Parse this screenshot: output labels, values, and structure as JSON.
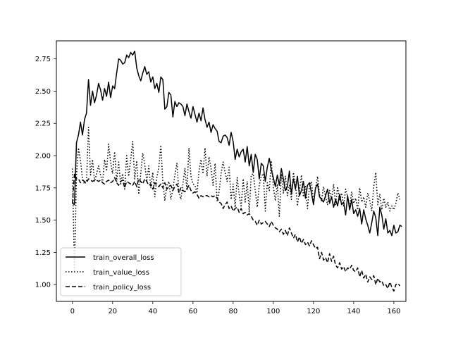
{
  "chart_data": {
    "type": "line",
    "title": "",
    "xlabel": "",
    "ylabel": "",
    "xlim": [
      -8,
      166
    ],
    "ylim": [
      0.87,
      2.89
    ],
    "xticks": [
      0,
      20,
      40,
      60,
      80,
      100,
      120,
      140,
      160
    ],
    "yticks": [
      1.0,
      1.25,
      1.5,
      1.75,
      2.0,
      2.25,
      2.5,
      2.75
    ],
    "grid": false,
    "legend_position": "lower-left",
    "series": [
      {
        "name": "train_overall_loss",
        "style": "solid",
        "color": "#000000",
        "values": [
          1.63,
          1.62,
          2.1,
          2.16,
          2.26,
          2.16,
          2.28,
          2.33,
          2.59,
          2.39,
          2.5,
          2.41,
          2.47,
          2.56,
          2.51,
          2.43,
          2.52,
          2.46,
          2.57,
          2.45,
          2.54,
          2.52,
          2.64,
          2.75,
          2.74,
          2.71,
          2.72,
          2.78,
          2.76,
          2.8,
          2.78,
          2.81,
          2.68,
          2.62,
          2.58,
          2.64,
          2.69,
          2.63,
          2.65,
          2.57,
          2.61,
          2.52,
          2.56,
          2.49,
          2.61,
          2.59,
          2.36,
          2.38,
          2.49,
          2.47,
          2.3,
          2.42,
          2.38,
          2.41,
          2.4,
          2.38,
          2.31,
          2.4,
          2.34,
          2.29,
          2.38,
          2.32,
          2.26,
          2.33,
          2.27,
          2.37,
          2.28,
          2.22,
          2.26,
          2.18,
          2.24,
          2.21,
          2.19,
          2.11,
          2.1,
          2.15,
          2.16,
          2.14,
          2.08,
          2.18,
          2.11,
          1.97,
          2.05,
          1.99,
          2.03,
          2.05,
          1.95,
          2.07,
          1.92,
          2.01,
          1.87,
          2.01,
          1.97,
          1.82,
          1.94,
          1.92,
          1.8,
          1.91,
          1.98,
          1.89,
          1.83,
          1.76,
          1.85,
          1.77,
          1.9,
          1.82,
          1.73,
          1.76,
          1.88,
          1.7,
          1.82,
          1.74,
          1.84,
          1.69,
          1.73,
          1.8,
          1.67,
          1.77,
          1.79,
          1.71,
          1.62,
          1.75,
          1.78,
          1.68,
          1.66,
          1.64,
          1.69,
          1.74,
          1.63,
          1.68,
          1.6,
          1.66,
          1.61,
          1.7,
          1.62,
          1.64,
          1.54,
          1.69,
          1.58,
          1.66,
          1.55,
          1.58,
          1.53,
          1.59,
          1.47,
          1.58,
          1.51,
          1.46,
          1.4,
          1.48,
          1.57,
          1.52,
          1.38,
          1.6,
          1.54,
          1.43,
          1.51,
          1.4,
          1.42,
          1.38,
          1.46,
          1.4,
          1.41,
          1.46,
          1.45
        ]
      },
      {
        "name": "train_value_loss",
        "style": "dotted",
        "color": "#000000",
        "values": [
          1.9,
          1.1,
          1.85,
          2.06,
          1.96,
          1.82,
          1.78,
          1.8,
          2.22,
          1.85,
          1.97,
          1.8,
          1.86,
          1.92,
          1.85,
          1.79,
          1.97,
          1.88,
          2.09,
          1.95,
          1.86,
          2.03,
          1.8,
          1.95,
          1.78,
          1.86,
          1.74,
          2.0,
          1.84,
          1.97,
          2.11,
          1.82,
          1.96,
          1.7,
          1.86,
          2.02,
          1.93,
          1.8,
          1.92,
          1.75,
          1.87,
          1.68,
          1.83,
          1.91,
          2.08,
          1.8,
          1.65,
          1.77,
          1.8,
          1.66,
          1.74,
          1.85,
          1.94,
          1.72,
          1.66,
          1.78,
          1.9,
          1.73,
          2.06,
          1.84,
          1.78,
          1.77,
          1.71,
          1.88,
          1.97,
          1.86,
          2.06,
          1.84,
          1.99,
          1.9,
          1.77,
          1.94,
          1.65,
          1.72,
          1.86,
          1.95,
          1.87,
          1.8,
          1.91,
          1.66,
          1.78,
          1.6,
          1.83,
          1.7,
          1.6,
          1.82,
          1.64,
          1.8,
          1.56,
          1.85,
          1.86,
          1.73,
          1.6,
          1.77,
          1.84,
          1.86,
          1.57,
          1.79,
          1.73,
          1.96,
          1.76,
          1.65,
          1.78,
          1.53,
          1.86,
          1.71,
          1.84,
          1.69,
          1.77,
          1.66,
          1.87,
          1.78,
          1.61,
          1.73,
          1.85,
          1.68,
          1.77,
          1.59,
          1.76,
          1.8,
          1.64,
          1.74,
          1.84,
          1.7,
          1.65,
          1.76,
          1.68,
          1.62,
          1.73,
          1.66,
          1.78,
          1.62,
          1.76,
          1.65,
          1.71,
          1.61,
          1.74,
          1.68,
          1.6,
          1.72,
          1.63,
          1.67,
          1.58,
          1.75,
          1.64,
          1.68,
          1.6,
          1.71,
          1.65,
          1.57,
          1.76,
          1.87,
          1.62,
          1.7,
          1.58,
          1.67,
          1.6,
          1.64,
          1.57,
          1.61,
          1.58,
          1.63,
          1.71,
          1.66
        ]
      },
      {
        "name": "train_policy_loss",
        "style": "dashed",
        "color": "#000000",
        "values": [
          1.63,
          1.86,
          1.82,
          1.82,
          1.79,
          1.81,
          1.8,
          1.79,
          1.82,
          1.81,
          1.8,
          1.81,
          1.81,
          1.8,
          1.81,
          1.79,
          1.78,
          1.8,
          1.81,
          1.79,
          1.8,
          1.83,
          1.79,
          1.77,
          1.8,
          1.81,
          1.75,
          1.8,
          1.79,
          1.78,
          1.77,
          1.8,
          1.76,
          1.82,
          1.8,
          1.78,
          1.82,
          1.8,
          1.77,
          1.78,
          1.74,
          1.79,
          1.77,
          1.76,
          1.78,
          1.75,
          1.79,
          1.74,
          1.76,
          1.77,
          1.73,
          1.76,
          1.78,
          1.71,
          1.75,
          1.73,
          1.72,
          1.74,
          1.77,
          1.73,
          1.71,
          1.72,
          1.7,
          1.67,
          1.69,
          1.68,
          1.69,
          1.69,
          1.68,
          1.69,
          1.68,
          1.69,
          1.67,
          1.64,
          1.63,
          1.59,
          1.62,
          1.64,
          1.59,
          1.61,
          1.57,
          1.59,
          1.6,
          1.56,
          1.59,
          1.55,
          1.56,
          1.54,
          1.55,
          1.53,
          1.5,
          1.49,
          1.46,
          1.5,
          1.47,
          1.48,
          1.49,
          1.47,
          1.45,
          1.49,
          1.46,
          1.44,
          1.43,
          1.41,
          1.43,
          1.39,
          1.42,
          1.38,
          1.44,
          1.4,
          1.36,
          1.39,
          1.33,
          1.37,
          1.32,
          1.35,
          1.31,
          1.33,
          1.3,
          1.34,
          1.31,
          1.28,
          1.29,
          1.2,
          1.25,
          1.19,
          1.21,
          1.17,
          1.24,
          1.18,
          1.22,
          1.15,
          1.13,
          1.17,
          1.12,
          1.14,
          1.1,
          1.13,
          1.12,
          1.15,
          1.11,
          1.1,
          1.13,
          1.06,
          1.11,
          1.05,
          1.08,
          1.02,
          1.06,
          1.04,
          1.07,
          1.0,
          1.05,
          1.02,
          1.03,
          0.99,
          1.0,
          0.97,
          1.02,
          0.98,
          0.95,
          1.0,
          1.01,
          0.99
        ]
      }
    ]
  }
}
